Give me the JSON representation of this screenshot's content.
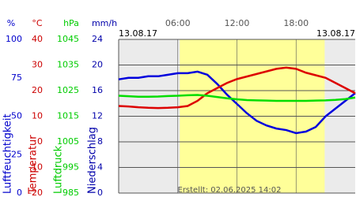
{
  "chart_data": {
    "type": "line",
    "start_date": "13.08.17",
    "end_date": "13.08.17",
    "created": "Erstellt: 02.06.2025 14:02",
    "x": [
      0,
      1,
      2,
      3,
      4,
      5,
      6,
      7,
      8,
      9,
      10,
      11,
      12,
      13,
      14,
      15,
      16,
      17,
      18,
      19,
      20,
      21,
      22,
      23,
      24
    ],
    "xlim": [
      0,
      24
    ],
    "xticks": [
      {
        "value": 6,
        "label": "06:00"
      },
      {
        "value": 12,
        "label": "12:00"
      },
      {
        "value": 18,
        "label": "18:00"
      }
    ],
    "daylight": [
      6.2,
      20.9
    ],
    "axes": [
      {
        "unit": "%",
        "title": "Luftfeuchtigkeit",
        "color": "#0000cc",
        "ylim": [
          0,
          100
        ],
        "yticks": [
          0,
          25,
          50,
          75,
          100
        ]
      },
      {
        "unit": "°C",
        "title": "Temperatur",
        "color": "#cc0000",
        "ylim": [
          -20,
          40
        ],
        "yticks": [
          -20,
          -10,
          0,
          10,
          20,
          30,
          40
        ]
      },
      {
        "unit": "hPa",
        "title": "Luftdruck",
        "color": "#00cc00",
        "ylim": [
          985,
          1045
        ],
        "yticks": [
          985,
          995,
          1005,
          1015,
          1025,
          1035,
          1045
        ]
      },
      {
        "unit": "mm/h",
        "title": "Niederschlag",
        "color": "#0000aa",
        "ylim": [
          0,
          24
        ],
        "yticks": [
          0,
          4,
          8,
          12,
          16,
          20,
          24
        ]
      }
    ],
    "series": [
      {
        "axis": 0,
        "color": "#0000dd",
        "values": [
          74,
          75,
          75,
          76,
          76,
          77,
          78,
          78,
          79,
          77,
          71,
          64,
          58,
          52,
          47,
          44,
          42,
          41,
          39,
          40,
          43,
          50,
          55,
          60,
          65
        ]
      },
      {
        "axis": 1,
        "color": "#dd0000",
        "values": [
          14,
          13.8,
          13.5,
          13.3,
          13.2,
          13.3,
          13.5,
          14,
          16,
          19,
          21,
          23,
          24.5,
          25.5,
          26.5,
          27.5,
          28.5,
          29,
          28.5,
          27,
          26,
          25,
          23,
          21,
          19
        ]
      },
      {
        "axis": 2,
        "color": "#00dd00",
        "values": [
          1023,
          1022.8,
          1022.6,
          1022.6,
          1022.7,
          1022.9,
          1023,
          1023.2,
          1023.3,
          1023,
          1022.5,
          1022,
          1021.6,
          1021.3,
          1021.2,
          1021.1,
          1021,
          1021,
          1021,
          1021,
          1021.1,
          1021.2,
          1021.4,
          1021.7,
          1022.3
        ]
      }
    ],
    "grid": true
  }
}
